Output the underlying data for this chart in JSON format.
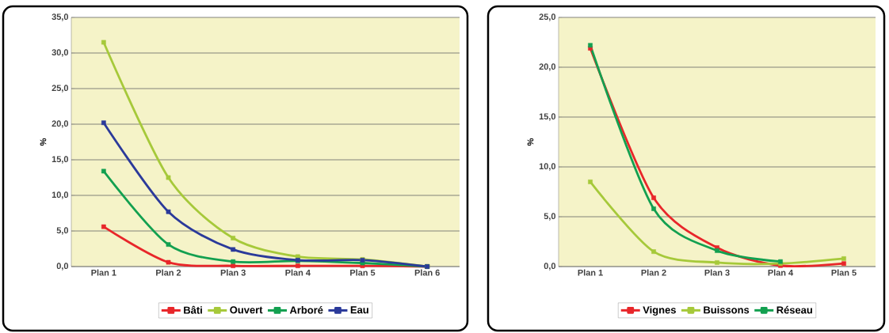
{
  "chart_data": [
    {
      "type": "line",
      "ylabel": "%",
      "categories": [
        "Plan 1",
        "Plan 2",
        "Plan 3",
        "Plan 4",
        "Plan 5",
        "Plan 6"
      ],
      "series": [
        {
          "name": "Bâti",
          "color": "#e8262a",
          "values": [
            5.6,
            0.6,
            0.1,
            0.1,
            0.1,
            0.0
          ]
        },
        {
          "name": "Ouvert",
          "color": "#a6c93a",
          "values": [
            31.5,
            12.5,
            4.0,
            1.4,
            1.0,
            0.0
          ]
        },
        {
          "name": "Arboré",
          "color": "#13a050",
          "values": [
            13.4,
            3.1,
            0.7,
            0.8,
            0.5,
            0.0
          ]
        },
        {
          "name": "Eau",
          "color": "#2b3a9a",
          "values": [
            20.2,
            7.7,
            2.4,
            0.9,
            0.9,
            0.0
          ]
        }
      ],
      "ylim": [
        0,
        35
      ],
      "yticks": [
        {
          "value": 0,
          "label": "0,0"
        },
        {
          "value": 5,
          "label": "5,0"
        },
        {
          "value": 10,
          "label": "10,0"
        },
        {
          "value": 15,
          "label": "15,0"
        },
        {
          "value": 20,
          "label": "20,0"
        },
        {
          "value": 25,
          "label": "25,0"
        },
        {
          "value": 30,
          "label": "30,0"
        },
        {
          "value": 35,
          "label": "35,0"
        }
      ],
      "grid": "y",
      "legend": "bottom",
      "marker": "square"
    },
    {
      "type": "line",
      "ylabel": "%",
      "categories": [
        "Plan 1",
        "Plan 2",
        "Plan 3",
        "Plan 4",
        "Plan 5"
      ],
      "series": [
        {
          "name": "Vignes",
          "color": "#e8262a",
          "values": [
            21.9,
            6.9,
            1.9,
            0.1,
            0.3
          ]
        },
        {
          "name": "Buissons",
          "color": "#a6c93a",
          "values": [
            8.5,
            1.5,
            0.4,
            0.3,
            0.8
          ]
        },
        {
          "name": "Réseau",
          "color": "#13a050",
          "values": [
            22.2,
            5.8,
            1.6,
            0.5,
            null
          ]
        }
      ],
      "ylim": [
        0,
        25
      ],
      "yticks": [
        {
          "value": 0,
          "label": "0,0"
        },
        {
          "value": 5,
          "label": "5,0"
        },
        {
          "value": 10,
          "label": "10,0"
        },
        {
          "value": 15,
          "label": "15,0"
        },
        {
          "value": 20,
          "label": "20,0"
        },
        {
          "value": 25,
          "label": "25,0"
        }
      ],
      "grid": "y",
      "legend": "bottom",
      "marker": "square"
    }
  ]
}
